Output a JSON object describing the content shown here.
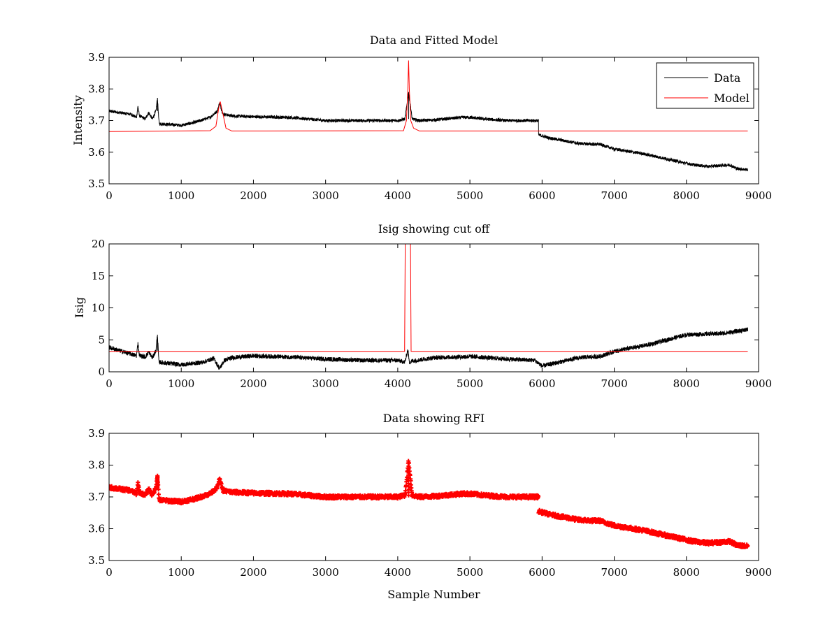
{
  "chart_data": [
    {
      "type": "line",
      "title": "Data and Fitted Model",
      "xlabel": "",
      "ylabel": "Intensity",
      "xlim": [
        0,
        9000
      ],
      "ylim": [
        3.5,
        3.9
      ],
      "xticks": [
        0,
        1000,
        2000,
        3000,
        4000,
        5000,
        6000,
        7000,
        8000,
        9000
      ],
      "yticks": [
        3.5,
        3.6,
        3.7,
        3.8,
        3.9
      ],
      "grid": false,
      "legend_position": "top-right",
      "series": [
        {
          "name": "Data",
          "color": "#000000",
          "style": "line",
          "noise": 0.005,
          "x": [
            0,
            300,
            380,
            400,
            420,
            500,
            550,
            600,
            650,
            670,
            690,
            700,
            1000,
            1200,
            1400,
            1500,
            1530,
            1580,
            1700,
            2000,
            2500,
            3000,
            3500,
            4000,
            4100,
            4150,
            4200,
            4300,
            4500,
            4900,
            5000,
            5200,
            5500,
            5950,
            5951,
            6100,
            6500,
            6700,
            6800,
            7000,
            7400,
            7800,
            8100,
            8300,
            8600,
            8700,
            8850
          ],
          "y": [
            3.73,
            3.72,
            3.71,
            3.745,
            3.715,
            3.705,
            3.725,
            3.705,
            3.73,
            3.77,
            3.7,
            3.69,
            3.685,
            3.695,
            3.71,
            3.73,
            3.755,
            3.72,
            3.715,
            3.712,
            3.71,
            3.7,
            3.7,
            3.7,
            3.705,
            3.79,
            3.705,
            3.7,
            3.702,
            3.71,
            3.71,
            3.705,
            3.7,
            3.7,
            3.655,
            3.645,
            3.628,
            3.625,
            3.625,
            3.61,
            3.595,
            3.575,
            3.56,
            3.555,
            3.56,
            3.548,
            3.545
          ]
        },
        {
          "name": "Model",
          "color": "#ff0000",
          "style": "line",
          "noise": 0,
          "x": [
            0,
            1400,
            1480,
            1520,
            1540,
            1560,
            1620,
            1700,
            4080,
            4120,
            4140,
            4150,
            4160,
            4180,
            4220,
            4300,
            8850
          ],
          "y": [
            3.665,
            3.668,
            3.682,
            3.74,
            3.76,
            3.74,
            3.676,
            3.667,
            3.668,
            3.7,
            3.8,
            3.89,
            3.8,
            3.7,
            3.676,
            3.667,
            3.667
          ]
        }
      ]
    },
    {
      "type": "line",
      "title": "Isig showing cut off",
      "xlabel": "",
      "ylabel": "Isig",
      "xlim": [
        0,
        9000
      ],
      "ylim": [
        0,
        20
      ],
      "xticks": [
        0,
        1000,
        2000,
        3000,
        4000,
        5000,
        6000,
        7000,
        8000,
        9000
      ],
      "yticks": [
        0,
        5,
        10,
        15,
        20
      ],
      "grid": false,
      "series": [
        {
          "name": "",
          "color": "#000000",
          "style": "line",
          "noise": 0.35,
          "x": [
            0,
            300,
            380,
            400,
            420,
            500,
            550,
            600,
            650,
            670,
            690,
            700,
            1000,
            1300,
            1450,
            1530,
            1600,
            1700,
            2000,
            2500,
            3000,
            3500,
            4000,
            4100,
            4140,
            4160,
            4200,
            4500,
            5000,
            5500,
            5900,
            6000,
            6200,
            6500,
            6800,
            7000,
            7500,
            8000,
            8500,
            8850
          ],
          "y": [
            3.8,
            2.8,
            2.5,
            4.5,
            2.6,
            2.3,
            3.1,
            2.2,
            3.3,
            5.8,
            1.6,
            1.5,
            1.1,
            1.5,
            2.1,
            0.5,
            1.8,
            2.2,
            2.5,
            2.3,
            2.0,
            1.8,
            1.8,
            1.5,
            3.5,
            1.5,
            1.7,
            2.2,
            2.4,
            2.0,
            1.8,
            0.9,
            1.4,
            2.2,
            2.4,
            3.2,
            4.3,
            5.8,
            6.0,
            6.6
          ]
        },
        {
          "name": "",
          "color": "#ff0000",
          "style": "line",
          "noise": 0,
          "x": [
            0,
            4095,
            4105,
            4175,
            4185,
            8850
          ],
          "y": [
            3.2,
            3.2,
            22,
            22,
            3.2,
            3.2
          ]
        }
      ]
    },
    {
      "type": "scatter",
      "title": "Data showing RFI",
      "xlabel": "Sample Number",
      "ylabel": "",
      "xlim": [
        0,
        9000
      ],
      "ylim": [
        3.5,
        3.9
      ],
      "xticks": [
        0,
        1000,
        2000,
        3000,
        4000,
        5000,
        6000,
        7000,
        8000,
        9000
      ],
      "yticks": [
        3.5,
        3.6,
        3.7,
        3.8,
        3.9
      ],
      "grid": false,
      "series": [
        {
          "name": "",
          "color": "#ff0000",
          "style": "markers",
          "noise": 0.005,
          "x": [
            0,
            300,
            380,
            400,
            420,
            500,
            550,
            600,
            650,
            670,
            690,
            700,
            1000,
            1200,
            1400,
            1500,
            1530,
            1580,
            1700,
            2000,
            2500,
            3000,
            3500,
            4000,
            4100,
            4150,
            4200,
            4300,
            4500,
            4900,
            5000,
            5200,
            5500,
            5950,
            5951,
            6100,
            6500,
            6700,
            6800,
            7000,
            7400,
            7800,
            8100,
            8300,
            8600,
            8700,
            8850
          ],
          "y": [
            3.73,
            3.72,
            3.71,
            3.745,
            3.715,
            3.705,
            3.725,
            3.705,
            3.73,
            3.77,
            3.7,
            3.69,
            3.685,
            3.695,
            3.71,
            3.73,
            3.755,
            3.72,
            3.715,
            3.712,
            3.71,
            3.7,
            3.7,
            3.7,
            3.705,
            3.815,
            3.705,
            3.7,
            3.702,
            3.71,
            3.71,
            3.705,
            3.7,
            3.7,
            3.655,
            3.645,
            3.628,
            3.625,
            3.625,
            3.61,
            3.595,
            3.575,
            3.56,
            3.555,
            3.56,
            3.548,
            3.545
          ]
        }
      ]
    }
  ]
}
